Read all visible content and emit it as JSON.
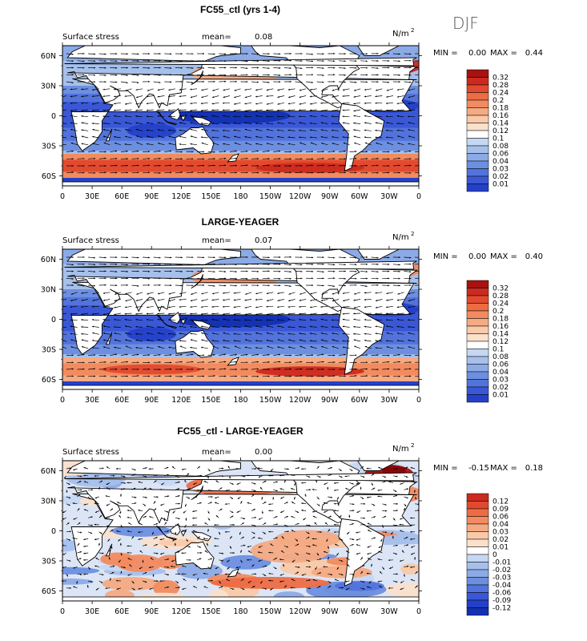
{
  "season": "DJF",
  "units_base": "N/m",
  "units_exp": "2",
  "panel_label": "Surface stress",
  "mean_label": "mean=",
  "min_label": "MIN =",
  "max_label": "MAX =",
  "x_ticks": [
    "0",
    "30E",
    "60E",
    "90E",
    "120E",
    "150E",
    "180",
    "150W",
    "120W",
    "90W",
    "60W",
    "30W",
    "0"
  ],
  "y_ticks": [
    "60N",
    "30N",
    "0",
    "30S",
    "60S"
  ],
  "colors": {
    "pos": [
      "#fbe0cc",
      "#f9c9a8",
      "#f6aa82",
      "#f28b5f",
      "#ee6c44",
      "#e24a2f",
      "#cc2a1f",
      "#a81210",
      "#850608"
    ],
    "neg": [
      "#c5d7f2",
      "#a6c0ec",
      "#8caae6",
      "#6d8fe0",
      "#5373dc",
      "#3a58d6",
      "#2440c9",
      "#1230b2",
      "#081d86"
    ],
    "neutral": "#ffffff",
    "land": "#ffffff"
  },
  "chart_data": [
    {
      "type": "heatmap",
      "title": "FC55_ctl (yrs 1-4)",
      "mean": "0.08",
      "min": "0.00",
      "max": "0.44",
      "colorbar": [
        "0.32",
        "0.28",
        "0.24",
        "0.2",
        "0.18",
        "0.16",
        "0.14",
        "0.12",
        "0.1",
        "0.08",
        "0.06",
        "0.04",
        "0.03",
        "0.02",
        "0.01"
      ],
      "colorbar_neutral_index": 8
    },
    {
      "type": "heatmap",
      "title": "LARGE-YEAGER",
      "mean": "0.07",
      "min": "0.00",
      "max": "0.40",
      "colorbar": [
        "0.32",
        "0.28",
        "0.24",
        "0.2",
        "0.18",
        "0.16",
        "0.14",
        "0.12",
        "0.1",
        "0.08",
        "0.06",
        "0.04",
        "0.03",
        "0.02",
        "0.01"
      ],
      "colorbar_neutral_index": 8
    },
    {
      "type": "heatmap",
      "title": "FC55_ctl - LARGE-YEAGER",
      "mean": "0.00",
      "min": "-0.15",
      "max": "0.18",
      "colorbar": [
        "0.12",
        "0.09",
        "0.06",
        "0.04",
        "0.03",
        "0.02",
        "0.01",
        "0",
        "-0.01",
        "-0.02",
        "-0.03",
        "-0.04",
        "-0.06",
        "-0.09",
        "-0.12"
      ],
      "colorbar_neutral_index": 7
    }
  ]
}
